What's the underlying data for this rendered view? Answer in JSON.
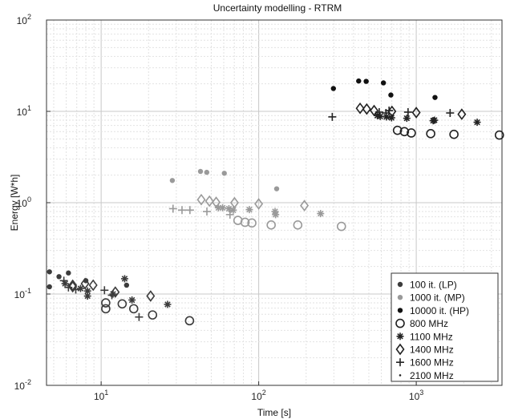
{
  "chart_data": {
    "type": "scatter",
    "title": "Uncertainty modelling - RTRM",
    "xlabel": "Time [s]",
    "ylabel": "Energy [W*h]",
    "xscale": "log",
    "yscale": "log",
    "xlim": [
      4.5,
      3500
    ],
    "ylim": [
      0.01,
      100
    ],
    "x_ticks": [
      {
        "value": 10,
        "base": "10",
        "exp": "1"
      },
      {
        "value": 100,
        "base": "10",
        "exp": "2"
      },
      {
        "value": 1000,
        "base": "10",
        "exp": "3"
      }
    ],
    "y_ticks": [
      {
        "value": 0.01,
        "base": "10",
        "exp": "-2"
      },
      {
        "value": 0.1,
        "base": "10",
        "exp": "-1"
      },
      {
        "value": 1,
        "base": "10",
        "exp": "0"
      },
      {
        "value": 10,
        "base": "10",
        "exp": "1"
      },
      {
        "value": 100,
        "base": "10",
        "exp": "2"
      }
    ],
    "grid": true,
    "legend_position": "bottom-right",
    "legend": [
      {
        "label": "100 it. (LP)",
        "marker": "dot",
        "color": "#3c3c3c"
      },
      {
        "label": "1000 it. (MP)",
        "marker": "dot",
        "color": "#9a9a9a"
      },
      {
        "label": "10000 it. (HP)",
        "marker": "dot",
        "color": "#111111"
      },
      {
        "label": "800 MHz",
        "marker": "circle",
        "color": "#222222"
      },
      {
        "label": "1100 MHz",
        "marker": "asterisk",
        "color": "#222222"
      },
      {
        "label": "1400 MHz",
        "marker": "diamond",
        "color": "#222222"
      },
      {
        "label": "1600 MHz",
        "marker": "plus",
        "color": "#222222"
      },
      {
        "label": "2100 MHz",
        "marker": "point",
        "color": "#222222"
      }
    ],
    "series": [
      {
        "group": "LP",
        "marker": "dot",
        "color": "#3c3c3c",
        "points": [
          [
            4.7,
            0.175
          ],
          [
            4.7,
            0.12
          ],
          [
            5.4,
            0.155
          ],
          [
            6.2,
            0.17
          ],
          [
            8.0,
            0.14
          ],
          [
            14.5,
            0.125
          ]
        ]
      },
      {
        "group": "LP",
        "marker": "circle",
        "color": "#3c3c3c",
        "points": [
          [
            10.7,
            0.08
          ],
          [
            10.7,
            0.069
          ],
          [
            13.6,
            0.078
          ],
          [
            16.1,
            0.069
          ],
          [
            21.2,
            0.059
          ],
          [
            36.4,
            0.051
          ]
        ]
      },
      {
        "group": "LP",
        "marker": "asterisk",
        "color": "#3c3c3c",
        "points": [
          [
            5.9,
            0.13
          ],
          [
            7.4,
            0.115
          ],
          [
            8.2,
            0.108
          ],
          [
            8.2,
            0.095
          ],
          [
            11.9,
            0.1
          ],
          [
            14.1,
            0.147
          ],
          [
            15.7,
            0.086
          ],
          [
            26.4,
            0.077
          ]
        ]
      },
      {
        "group": "LP",
        "marker": "diamond",
        "color": "#3c3c3c",
        "points": [
          [
            6.6,
            0.125
          ],
          [
            6.6,
            0.12
          ],
          [
            7.9,
            0.13
          ],
          [
            8.9,
            0.125
          ],
          [
            12.3,
            0.105
          ],
          [
            20.6,
            0.095
          ]
        ]
      },
      {
        "group": "LP",
        "marker": "plus",
        "color": "#3c3c3c",
        "points": [
          [
            5.8,
            0.14
          ],
          [
            6.2,
            0.118
          ],
          [
            6.9,
            0.112
          ],
          [
            10.5,
            0.11
          ],
          [
            11.7,
            0.097
          ],
          [
            17.4,
            0.056
          ]
        ]
      },
      {
        "group": "MP",
        "marker": "dot",
        "color": "#9a9a9a",
        "points": [
          [
            28.3,
            1.75
          ],
          [
            42.7,
            2.2
          ],
          [
            46.8,
            2.15
          ],
          [
            60.5,
            2.1
          ],
          [
            130,
            1.42
          ]
        ]
      },
      {
        "group": "MP",
        "marker": "circle",
        "color": "#9a9a9a",
        "points": [
          [
            73.8,
            0.64
          ],
          [
            81.9,
            0.61
          ],
          [
            90.5,
            0.6
          ],
          [
            120,
            0.57
          ],
          [
            177,
            0.57
          ],
          [
            335,
            0.55
          ]
        ]
      },
      {
        "group": "MP",
        "marker": "asterisk",
        "color": "#9a9a9a",
        "points": [
          [
            55.5,
            0.88
          ],
          [
            59.0,
            0.88
          ],
          [
            64.7,
            0.86
          ],
          [
            68.9,
            0.83
          ],
          [
            87.2,
            0.84
          ],
          [
            127,
            0.8
          ],
          [
            128,
            0.74
          ],
          [
            247,
            0.76
          ]
        ]
      },
      {
        "group": "MP",
        "marker": "diamond",
        "color": "#9a9a9a",
        "points": [
          [
            43.2,
            1.08
          ],
          [
            48.7,
            1.04
          ],
          [
            53.7,
            1.01
          ],
          [
            70.2,
            1.0
          ],
          [
            100,
            0.97
          ],
          [
            195,
            0.93
          ]
        ]
      },
      {
        "group": "MP",
        "marker": "plus",
        "color": "#9a9a9a",
        "points": [
          [
            28.6,
            0.86
          ],
          [
            32.6,
            0.83
          ],
          [
            36.6,
            0.83
          ],
          [
            46.9,
            0.8
          ],
          [
            65.7,
            0.74
          ]
        ]
      },
      {
        "group": "HP",
        "marker": "dot",
        "color": "#111111",
        "points": [
          [
            298,
            17.8
          ],
          [
            431,
            21.5
          ],
          [
            481,
            21.3
          ],
          [
            619,
            20.5
          ],
          [
            690,
            15.1
          ],
          [
            1315,
            14.2
          ]
        ]
      },
      {
        "group": "HP",
        "marker": "circle",
        "color": "#222222",
        "points": [
          [
            760,
            6.2
          ],
          [
            841,
            6.0
          ],
          [
            930,
            5.8
          ],
          [
            1235,
            5.7
          ],
          [
            1735,
            5.6
          ],
          [
            3370,
            5.5
          ]
        ]
      },
      {
        "group": "HP",
        "marker": "asterisk",
        "color": "#222222",
        "points": [
          [
            566,
            9.0
          ],
          [
            590,
            8.8
          ],
          [
            646,
            8.7
          ],
          [
            697,
            8.5
          ],
          [
            871,
            8.4
          ],
          [
            1280,
            7.9
          ],
          [
            1305,
            8.0
          ],
          [
            2435,
            7.6
          ]
        ]
      },
      {
        "group": "HP",
        "marker": "diamond",
        "color": "#222222",
        "points": [
          [
            440,
            10.8
          ],
          [
            485,
            10.6
          ],
          [
            540,
            10.2
          ],
          [
            701,
            10.0
          ],
          [
            1000,
            9.7
          ],
          [
            1945,
            9.3
          ]
        ]
      },
      {
        "group": "HP",
        "marker": "plus",
        "color": "#222222",
        "points": [
          [
            293,
            8.7
          ],
          [
            582,
            9.8
          ],
          [
            642,
            9.6
          ],
          [
            672,
            10.2
          ],
          [
            887,
            9.8
          ],
          [
            1640,
            9.6
          ]
        ]
      }
    ]
  }
}
